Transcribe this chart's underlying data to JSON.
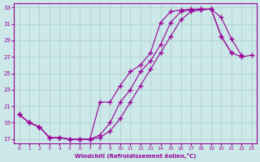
{
  "xlabel": "Windchill (Refroidissement éolien,°C)",
  "xlim": [
    -0.5,
    23.5
  ],
  "ylim": [
    16.5,
    33.5
  ],
  "xticks": [
    0,
    1,
    2,
    3,
    4,
    5,
    6,
    7,
    8,
    9,
    10,
    11,
    12,
    13,
    14,
    15,
    16,
    17,
    18,
    19,
    20,
    21,
    22,
    23
  ],
  "yticks": [
    17,
    19,
    21,
    23,
    25,
    27,
    29,
    31,
    33
  ],
  "background_color": "#cce8e8",
  "line_color": "#990099",
  "grid_color": "#aacccc",
  "line1_x": [
    0,
    1,
    2,
    3,
    4,
    5,
    6,
    7,
    8,
    9,
    10,
    11,
    12,
    13,
    14,
    15,
    16,
    17,
    18,
    19,
    20,
    21
  ],
  "line1_y": [
    20.0,
    19.0,
    18.5,
    17.2,
    17.2,
    17.0,
    17.0,
    17.0,
    17.2,
    18.0,
    19.5,
    21.5,
    23.5,
    25.5,
    27.5,
    29.5,
    31.5,
    32.5,
    32.7,
    32.8,
    29.5,
    27.5
  ],
  "line2_x": [
    0,
    1,
    2,
    3,
    4,
    5,
    6,
    7,
    8,
    9,
    10,
    11,
    12,
    13,
    14,
    15,
    16,
    17,
    18,
    19,
    20,
    21,
    22
  ],
  "line2_y": [
    20.0,
    19.0,
    18.5,
    17.2,
    17.2,
    17.0,
    17.0,
    17.0,
    17.5,
    19.0,
    21.5,
    23.0,
    25.2,
    26.5,
    28.5,
    31.2,
    32.5,
    32.7,
    32.8,
    32.8,
    31.8,
    29.2,
    27.2
  ],
  "line3_x": [
    0,
    1,
    2,
    3,
    4,
    5,
    6,
    7,
    8,
    9,
    10,
    11,
    12,
    13,
    14,
    15,
    16,
    17,
    18,
    19,
    20,
    21,
    22,
    23
  ],
  "line3_y": [
    20.0,
    19.0,
    18.5,
    17.2,
    17.2,
    17.0,
    17.0,
    17.0,
    21.5,
    21.5,
    23.5,
    25.2,
    26.0,
    27.5,
    31.2,
    32.5,
    32.7,
    32.8,
    32.8,
    32.8,
    29.5,
    27.5,
    27.0,
    27.2
  ]
}
